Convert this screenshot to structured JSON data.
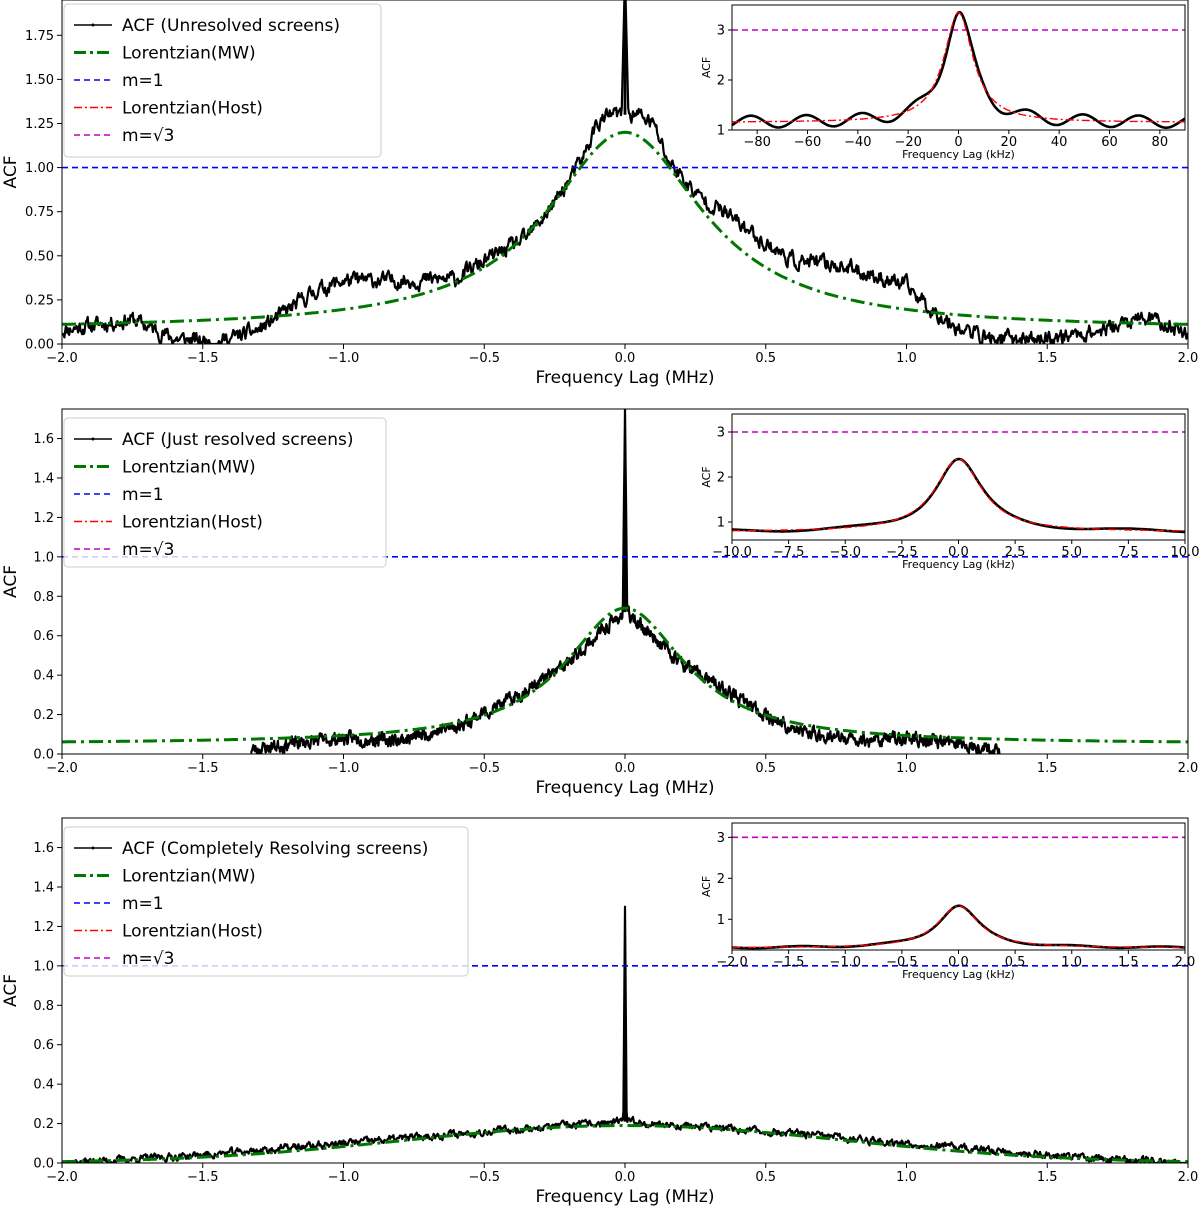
{
  "chart_data": [
    {
      "type": "line",
      "panel": "top",
      "xlabel": "Frequency Lag (MHz)",
      "ylabel": "ACF",
      "xlim": [
        -2.0,
        2.0
      ],
      "ylim": [
        0.0,
        1.95
      ],
      "xticks": [
        "−2.0",
        "−1.5",
        "−1.0",
        "−0.5",
        "0.0",
        "0.5",
        "1.0",
        "1.5",
        "2.0"
      ],
      "yticks": [
        "0.00",
        "0.25",
        "0.50",
        "0.75",
        "1.00",
        "1.25",
        "1.50",
        "1.75"
      ],
      "ytick_values": [
        0,
        0.25,
        0.5,
        0.75,
        1.0,
        1.25,
        1.5,
        1.75
      ],
      "legend": {
        "acf": "ACF (Unresolved screens)",
        "mw": "Lorentzian(MW)",
        "m1": "m=1",
        "host": "Lorentzian(Host)",
        "msqrt3": "m=√3"
      },
      "legend_placement": "top-left",
      "colors": {
        "acf": "#000000",
        "mw": "#007700",
        "m1": "#0000ff",
        "host": "#ff0000",
        "msqrt3": "#bf00bf"
      },
      "series": [
        {
          "name": "ACF (Unresolved screens)",
          "model": "noisy",
          "cutoff": 2.0,
          "noise": 0.08,
          "seed": 11,
          "control_points": [
            [
              -2.0,
              0.08
            ],
            [
              -1.75,
              0.14
            ],
            [
              -1.6,
              0.03
            ],
            [
              -1.45,
              0.01
            ],
            [
              -1.3,
              0.08
            ],
            [
              -1.1,
              0.3
            ],
            [
              -1.0,
              0.36
            ],
            [
              -0.75,
              0.36
            ],
            [
              -0.6,
              0.37
            ],
            [
              -0.5,
              0.47
            ],
            [
              -0.35,
              0.6
            ],
            [
              -0.25,
              0.8
            ],
            [
              -0.15,
              1.05
            ],
            [
              -0.1,
              1.25
            ],
            [
              -0.05,
              1.3
            ],
            [
              0.0,
              1.3
            ],
            [
              0.05,
              1.3
            ],
            [
              0.1,
              1.25
            ],
            [
              0.15,
              1.05
            ],
            [
              0.25,
              0.85
            ],
            [
              0.35,
              0.75
            ],
            [
              0.5,
              0.57
            ],
            [
              0.6,
              0.47
            ],
            [
              0.75,
              0.45
            ],
            [
              0.9,
              0.38
            ],
            [
              1.0,
              0.33
            ],
            [
              1.1,
              0.18
            ],
            [
              1.2,
              0.08
            ],
            [
              1.3,
              0.03
            ],
            [
              1.5,
              0.03
            ],
            [
              1.7,
              0.08
            ],
            [
              1.85,
              0.15
            ],
            [
              2.0,
              0.06
            ]
          ],
          "spike": {
            "x": 0.0,
            "y": 2.1,
            "halfwidth": 0.012
          }
        },
        {
          "name": "Lorentzian(MW)",
          "model": "lorentzian",
          "amp": 1.12,
          "gamma": 0.34,
          "offset": 0.08
        },
        {
          "name": "m=1",
          "model": "hline",
          "y": 1.0
        }
      ],
      "inset": {
        "xlabel": "Frequency Lag (kHz)",
        "ylabel": "ACF",
        "xlim": [
          -90,
          90
        ],
        "ylim": [
          1.0,
          3.5
        ],
        "xtick_values": [
          -80,
          -60,
          -40,
          -20,
          0,
          20,
          40,
          60,
          80
        ],
        "xticks": [
          "−80",
          "−60",
          "−40",
          "−20",
          "0",
          "20",
          "40",
          "60",
          "80"
        ],
        "ytick_values": [
          1,
          2,
          3
        ],
        "yticks": [
          "1",
          "2",
          "3"
        ],
        "msqrt3_level": 3.0,
        "acf": {
          "amp": 2.2,
          "gamma": 7.0,
          "offset": 1.15,
          "ripple": 0.12,
          "period": 22
        },
        "host": {
          "amp": 2.2,
          "gamma": 7.0,
          "offset": 1.15
        }
      }
    },
    {
      "type": "line",
      "panel": "middle",
      "xlabel": "Frequency Lag (MHz)",
      "ylabel": "ACF",
      "xlim": [
        -2.0,
        2.0
      ],
      "ylim": [
        0.0,
        1.75
      ],
      "xticks": [
        "−2.0",
        "−1.5",
        "−1.0",
        "−0.5",
        "0.0",
        "0.5",
        "1.0",
        "1.5",
        "2.0"
      ],
      "yticks": [
        "0.0",
        "0.2",
        "0.4",
        "0.6",
        "0.8",
        "1.0",
        "1.2",
        "1.4",
        "1.6"
      ],
      "ytick_values": [
        0,
        0.2,
        0.4,
        0.6,
        0.8,
        1.0,
        1.2,
        1.4,
        1.6
      ],
      "legend": {
        "acf": "ACF (Just resolved screens)",
        "mw": "Lorentzian(MW)",
        "m1": "m=1",
        "host": "Lorentzian(Host)",
        "msqrt3": "m=√3"
      },
      "legend_placement": "top-left",
      "colors": {
        "acf": "#000000",
        "mw": "#007700",
        "m1": "#0000ff",
        "host": "#ff0000",
        "msqrt3": "#bf00bf"
      },
      "series": [
        {
          "name": "ACF (Just resolved screens)",
          "model": "noisy",
          "cutoff": 1.33,
          "noise": 0.06,
          "seed": 23,
          "control_points": [
            [
              -1.33,
              0.02
            ],
            [
              -1.2,
              0.05
            ],
            [
              -1.0,
              0.08
            ],
            [
              -0.8,
              0.07
            ],
            [
              -0.6,
              0.14
            ],
            [
              -0.4,
              0.28
            ],
            [
              -0.2,
              0.46
            ],
            [
              -0.1,
              0.6
            ],
            [
              0.0,
              0.72
            ],
            [
              0.1,
              0.6
            ],
            [
              0.2,
              0.46
            ],
            [
              0.4,
              0.28
            ],
            [
              0.6,
              0.12
            ],
            [
              0.8,
              0.07
            ],
            [
              1.0,
              0.08
            ],
            [
              1.2,
              0.05
            ],
            [
              1.33,
              0.02
            ]
          ],
          "spike": {
            "x": 0.0,
            "y": 1.75,
            "halfwidth": 0.008
          }
        },
        {
          "name": "Lorentzian(MW)",
          "model": "lorentzian",
          "amp": 0.69,
          "gamma": 0.26,
          "offset": 0.05
        },
        {
          "name": "m=1",
          "model": "hline",
          "y": 1.0
        }
      ],
      "inset": {
        "xlabel": "Frequency Lag (kHz)",
        "ylabel": "ACF",
        "xlim": [
          -10,
          10
        ],
        "ylim": [
          0.6,
          3.4
        ],
        "xtick_values": [
          -10,
          -7.5,
          -5,
          -2.5,
          0,
          2.5,
          5,
          7.5,
          10
        ],
        "xticks": [
          "−10.0",
          "−7.5",
          "−5.0",
          "−2.5",
          "0.0",
          "2.5",
          "5.0",
          "7.5",
          "10.0"
        ],
        "ytick_values": [
          1,
          2,
          3
        ],
        "yticks": [
          "1",
          "2",
          "3"
        ],
        "msqrt3_level": 3.0,
        "acf": {
          "amp": 1.62,
          "gamma": 1.25,
          "offset": 0.78,
          "ripple": 0.03,
          "period": 6
        },
        "host": {
          "amp": 1.62,
          "gamma": 1.25,
          "offset": 0.78
        }
      }
    },
    {
      "type": "line",
      "panel": "bottom",
      "xlabel": "Frequency Lag (MHz)",
      "ylabel": "ACF",
      "xlim": [
        -2.0,
        2.0
      ],
      "ylim": [
        0.0,
        1.75
      ],
      "xticks": [
        "−2.0",
        "−1.5",
        "−1.0",
        "−0.5",
        "0.0",
        "0.5",
        "1.0",
        "1.5",
        "2.0"
      ],
      "yticks": [
        "0.0",
        "0.2",
        "0.4",
        "0.6",
        "0.8",
        "1.0",
        "1.2",
        "1.4",
        "1.6"
      ],
      "ytick_values": [
        0,
        0.2,
        0.4,
        0.6,
        0.8,
        1.0,
        1.2,
        1.4,
        1.6
      ],
      "legend": {
        "acf": "ACF (Completely Resolving screens)",
        "mw": "Lorentzian(MW)",
        "m1": "m=1",
        "host": "Lorentzian(Host)",
        "msqrt3": "m=√3"
      },
      "legend_placement": "top-left",
      "colors": {
        "acf": "#000000",
        "mw": "#007700",
        "m1": "#0000ff",
        "host": "#ff0000",
        "msqrt3": "#bf00bf"
      },
      "series": [
        {
          "name": "ACF (Completely Resolving screens)",
          "model": "noisy",
          "cutoff": 2.0,
          "noise": 0.035,
          "seed": 37,
          "control_points": [
            [
              -2.0,
              0.0
            ],
            [
              -1.5,
              0.04
            ],
            [
              -1.0,
              0.1
            ],
            [
              -0.5,
              0.16
            ],
            [
              -0.2,
              0.19
            ],
            [
              0.0,
              0.21
            ],
            [
              0.2,
              0.19
            ],
            [
              0.5,
              0.16
            ],
            [
              1.0,
              0.1
            ],
            [
              1.5,
              0.04
            ],
            [
              2.0,
              0.0
            ]
          ],
          "spike": {
            "x": 0.0,
            "y": 1.3,
            "halfwidth": 0.006
          }
        },
        {
          "name": "Lorentzian(MW)",
          "model": "gaussian",
          "amp": 0.19,
          "sigma": 0.78,
          "offset": 0.0
        },
        {
          "name": "m=1",
          "model": "hline",
          "y": 1.0
        }
      ],
      "inset": {
        "xlabel": "Frequency Lag (kHz)",
        "ylabel": "ACF",
        "xlim": [
          -2.0,
          2.0
        ],
        "ylim": [
          0.25,
          3.35
        ],
        "xtick_values": [
          -2.0,
          -1.5,
          -1.0,
          -0.5,
          0.0,
          0.5,
          1.0,
          1.5,
          2.0
        ],
        "xticks": [
          "−2.0",
          "−1.5",
          "−1.0",
          "−0.5",
          "0.0",
          "0.5",
          "1.0",
          "1.5",
          "2.0"
        ],
        "ytick_values": [
          1,
          2,
          3
        ],
        "yticks": [
          "1",
          "2",
          "3"
        ],
        "msqrt3_level": 3.0,
        "acf": {
          "amp": 1.03,
          "gamma": 0.22,
          "offset": 0.3,
          "ripple": 0.02,
          "period": 0.8
        },
        "host": {
          "amp": 1.03,
          "gamma": 0.22,
          "offset": 0.3
        }
      }
    }
  ]
}
